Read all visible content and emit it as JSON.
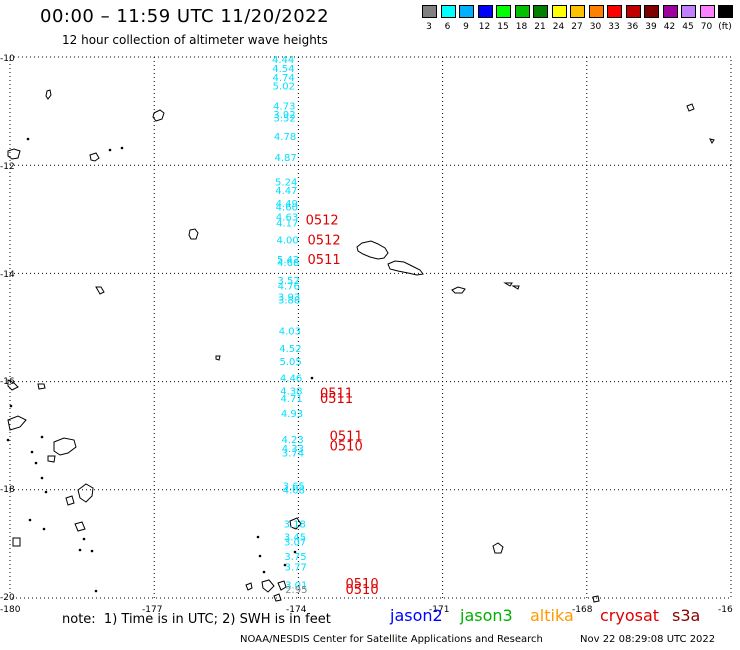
{
  "header": {
    "title": "00:00 – 11:59 UTC 11/20/2022",
    "subtitle": "12 hour collection of altimeter wave heights"
  },
  "legend": {
    "colors": [
      "#808080",
      "#00ffff",
      "#00b0ff",
      "#0000ff",
      "#00ff00",
      "#00c000",
      "#008000",
      "#ffff00",
      "#ffc000",
      "#ff8000",
      "#ff0000",
      "#c00000",
      "#800000",
      "#a000a0",
      "#c080ff",
      "#ff80ff",
      "#000000"
    ],
    "labels": [
      "3",
      "6",
      "9",
      "12",
      "15",
      "18",
      "21",
      "24",
      "27",
      "30",
      "33",
      "36",
      "39",
      "42",
      "45",
      "70",
      "(ft)"
    ]
  },
  "axes": {
    "lon_labels": [
      "-180",
      "-177",
      "-174",
      "-171",
      "-168",
      "-16"
    ],
    "lat_labels": [
      "-10",
      "-12",
      "-14",
      "-16",
      "-18",
      "-20"
    ]
  },
  "wave_heights": [
    {
      "v": "4.44",
      "lat": -10.04
    },
    {
      "v": "4.54",
      "lat": -10.2
    },
    {
      "v": "4.74",
      "lat": -10.37
    },
    {
      "v": "5.02",
      "lat": -10.53
    },
    {
      "v": "4.73",
      "lat": -10.9
    },
    {
      "v": "3.92",
      "lat": -11.05
    },
    {
      "v": "3.52",
      "lat": -11.12
    },
    {
      "v": "4.78",
      "lat": -11.46
    },
    {
      "v": "4.87",
      "lat": -11.85
    },
    {
      "v": "5.24",
      "lat": -12.3
    },
    {
      "v": "4.47",
      "lat": -12.46
    },
    {
      "v": "4.49",
      "lat": -12.7
    },
    {
      "v": "4.60",
      "lat": -12.76
    },
    {
      "v": "4.63",
      "lat": -12.95
    },
    {
      "v": "4.17",
      "lat": -13.06
    },
    {
      "v": "4.00",
      "lat": -13.37
    },
    {
      "v": "5.42",
      "lat": -13.73
    },
    {
      "v": "4.68",
      "lat": -13.79
    },
    {
      "v": "3.52",
      "lat": -14.12
    },
    {
      "v": "4.76",
      "lat": -14.22
    },
    {
      "v": "3.93",
      "lat": -14.43
    },
    {
      "v": "3.88",
      "lat": -14.48
    },
    {
      "v": "4.03",
      "lat": -15.06
    },
    {
      "v": "4.52",
      "lat": -15.38
    },
    {
      "v": "5.05",
      "lat": -15.62
    },
    {
      "v": "4.46",
      "lat": -15.92
    },
    {
      "v": "4.38",
      "lat": -16.16
    },
    {
      "v": "4.71",
      "lat": -16.3
    },
    {
      "v": "4.93",
      "lat": -16.58
    },
    {
      "v": "4.23",
      "lat": -17.06
    },
    {
      "v": "4.33",
      "lat": -17.23
    },
    {
      "v": "3.74",
      "lat": -17.31
    },
    {
      "v": "3.65",
      "lat": -17.92
    },
    {
      "v": "4.08",
      "lat": -17.99
    },
    {
      "v": "3.18",
      "lat": -18.62
    },
    {
      "v": "3.45",
      "lat": -18.86
    },
    {
      "v": "3.07",
      "lat": -18.96
    },
    {
      "v": "3.75",
      "lat": -19.22
    },
    {
      "v": "3.77",
      "lat": -19.42
    },
    {
      "v": "3.01",
      "lat": -19.75
    }
  ],
  "grey_heights": [
    {
      "v": "2.95",
      "lat": -19.83
    }
  ],
  "pass_labels": [
    {
      "v": "0512",
      "lon": -173.85,
      "lat": -13.0
    },
    {
      "v": "0512",
      "lon": -173.81,
      "lat": -13.37
    },
    {
      "v": "0511",
      "lon": -173.81,
      "lat": -13.73
    },
    {
      "v": "0511",
      "lon": -173.55,
      "lat": -16.2
    },
    {
      "v": "0511",
      "lon": -173.55,
      "lat": -16.3
    },
    {
      "v": "0511",
      "lon": -173.35,
      "lat": -17.0
    },
    {
      "v": "0510",
      "lon": -173.35,
      "lat": -17.18
    },
    {
      "v": "0510",
      "lon": -173.02,
      "lat": -19.72
    },
    {
      "v": "0510",
      "lon": -173.02,
      "lat": -19.83
    }
  ],
  "footer": {
    "note": "note:  1) Time is in UTC; 2) SWH is in feet",
    "satellites": [
      {
        "name": "jason2",
        "color": "#0000ff"
      },
      {
        "name": "jason3",
        "color": "#00b000"
      },
      {
        "name": "altika",
        "color": "#ff9900"
      },
      {
        "name": "cryosat",
        "color": "#dd0000"
      },
      {
        "name": "s3a",
        "color": "#880000"
      }
    ],
    "credit": "NOAA/NESDIS Center for Satellite Applications and Research",
    "timestamp": "Nov 22 08:29:08 UTC 2022"
  }
}
